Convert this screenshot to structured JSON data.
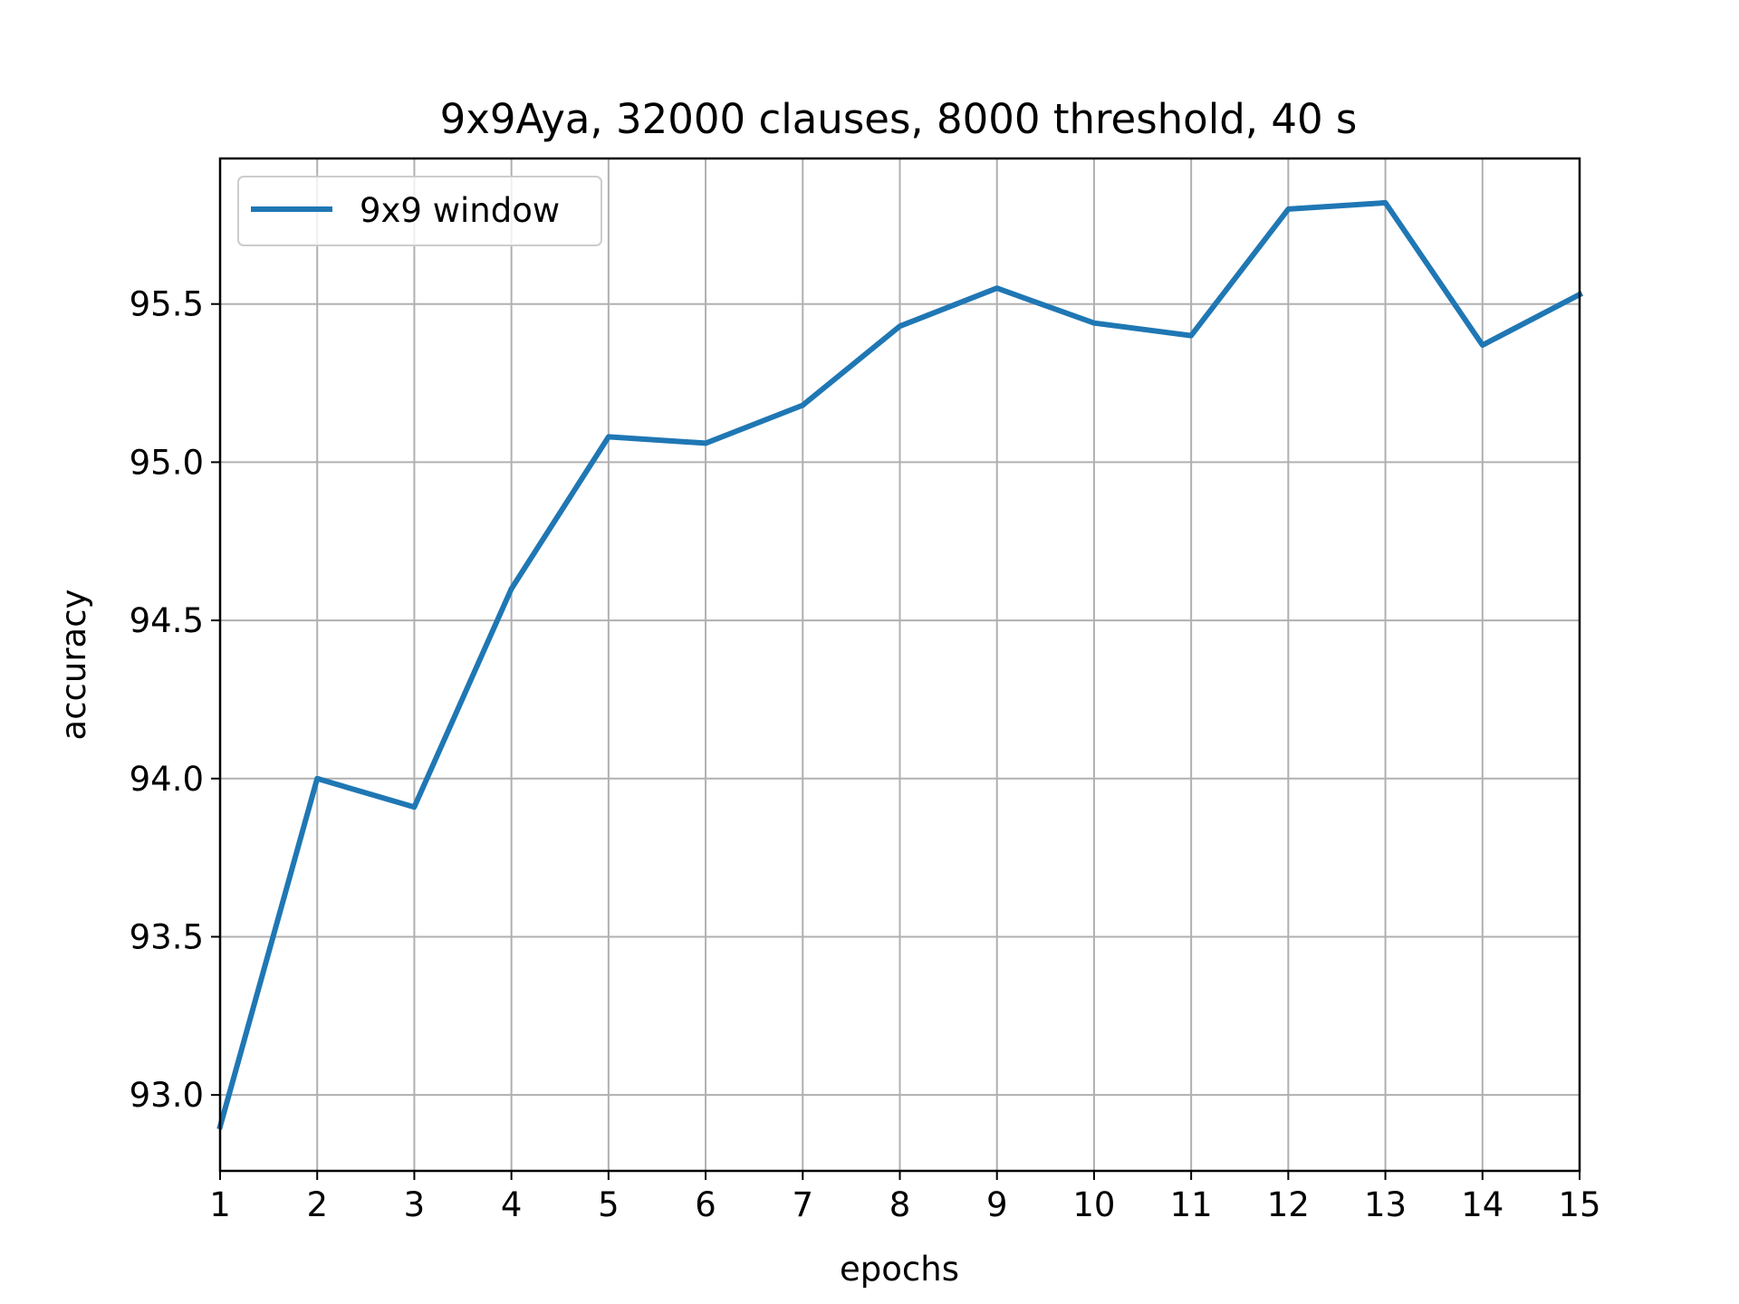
{
  "chart_data": {
    "type": "line",
    "title": "9x9Aya, 32000 clauses, 8000 threshold, 40 s",
    "xlabel": "epochs",
    "ylabel": "accuracy",
    "x": [
      1,
      2,
      3,
      4,
      5,
      6,
      7,
      8,
      9,
      10,
      11,
      12,
      13,
      14,
      15
    ],
    "series": [
      {
        "name": "9x9 window",
        "color": "#1f77b4",
        "values": [
          92.9,
          94.0,
          93.91,
          94.6,
          95.08,
          95.06,
          95.18,
          95.43,
          95.55,
          95.44,
          95.4,
          95.8,
          95.82,
          95.37,
          95.53
        ]
      }
    ],
    "xlim": [
      1,
      15
    ],
    "ylim": [
      92.76,
      95.96
    ],
    "xticks": [
      "1",
      "2",
      "3",
      "4",
      "5",
      "6",
      "7",
      "8",
      "9",
      "10",
      "11",
      "12",
      "13",
      "14",
      "15"
    ],
    "yticks": [
      "93.0",
      "93.5",
      "94.0",
      "94.5",
      "95.0",
      "95.5"
    ],
    "grid": true,
    "legend_position": "top-left"
  }
}
